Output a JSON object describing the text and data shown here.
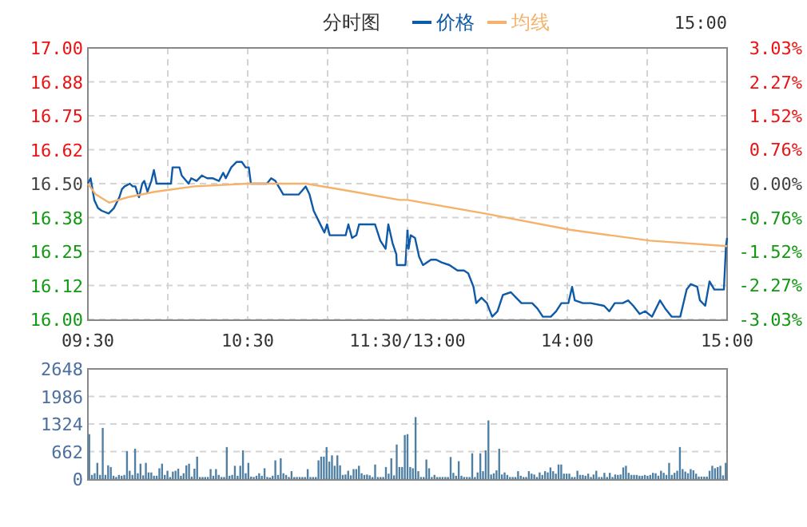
{
  "chart_data": [
    {
      "type": "line",
      "title": "分时图",
      "annotations": [
        "15:00"
      ],
      "legend": "top",
      "grid": true,
      "series": [
        {
          "name": "价格",
          "color": "#0f5aa6",
          "x": [
            9.5,
            9.517,
            9.54,
            9.563,
            9.587,
            9.63,
            9.663,
            9.697,
            9.713,
            9.73,
            9.763,
            9.78,
            9.797,
            9.813,
            9.82,
            9.84,
            9.853,
            9.873,
            9.897,
            9.913,
            9.93,
            9.963,
            10.02,
            10.03,
            10.073,
            10.087,
            10.13,
            10.147,
            10.18,
            10.213,
            10.247,
            10.28,
            10.32,
            10.347,
            10.363,
            10.397,
            10.43,
            10.463,
            10.487,
            10.507,
            10.52,
            10.62,
            10.647,
            10.673,
            10.723,
            10.82,
            10.863,
            10.887,
            10.913,
            10.963,
            10.98,
            10.997,
            11.013,
            11.03,
            11.08,
            11.113,
            11.13,
            11.153,
            11.18,
            11.197,
            11.297,
            11.33,
            11.363,
            11.38,
            11.407,
            11.43,
            11.433,
            11.487,
            11.5
          ],
          "values": [
            16.5,
            16.52,
            16.44,
            16.41,
            16.4,
            16.39,
            16.41,
            16.45,
            16.48,
            16.49,
            16.5,
            16.49,
            16.49,
            16.46,
            16.45,
            16.5,
            16.51,
            16.47,
            16.51,
            16.55,
            16.5,
            16.5,
            16.5,
            16.56,
            16.56,
            16.53,
            16.5,
            16.52,
            16.51,
            16.53,
            16.52,
            16.52,
            16.51,
            16.54,
            16.52,
            16.56,
            16.58,
            16.58,
            16.56,
            16.56,
            16.5,
            16.5,
            16.52,
            16.51,
            16.46,
            16.46,
            16.49,
            16.46,
            16.4,
            16.34,
            16.32,
            16.35,
            16.31,
            16.31,
            16.31,
            16.31,
            16.35,
            16.3,
            16.31,
            16.35,
            16.35,
            16.29,
            16.26,
            16.35,
            16.28,
            16.24,
            16.2,
            16.2,
            16.33
          ]
        },
        {
          "name": "均线",
          "color": "#f5b26b",
          "x": [
            9.5,
            9.55,
            9.633,
            9.75,
            9.917,
            10.167,
            10.5,
            10.867,
            11.167,
            11.45,
            11.5
          ],
          "values": [
            16.5,
            16.46,
            16.43,
            16.45,
            16.47,
            16.49,
            16.5,
            16.5,
            16.47,
            16.44,
            16.44
          ]
        }
      ],
      "xlim": [
        9.5,
        11.5
      ],
      "xticks": [
        {
          "value": 9.5,
          "label": "09:30"
        },
        {
          "value": 10,
          "label": null
        },
        {
          "value": 10.5,
          "label": "10:30"
        },
        {
          "value": 11,
          "label": null
        },
        {
          "value": 11.5,
          "label": "11:30/13:00"
        }
      ],
      "ylim": [
        16,
        17
      ],
      "yticks": [
        {
          "value": 16,
          "label": "16.00"
        },
        {
          "value": 16.125,
          "label": "16.12"
        },
        {
          "value": 16.25,
          "label": "16.25"
        },
        {
          "value": 16.375,
          "label": "16.38"
        },
        {
          "value": 16.5,
          "label": "16.50"
        },
        {
          "value": 16.625,
          "label": "16.62"
        },
        {
          "value": 16.75,
          "label": "16.75"
        },
        {
          "value": 16.875,
          "label": "16.88"
        },
        {
          "value": 17,
          "label": "17.00"
        }
      ]
    },
    {
      "type": "line",
      "grid": true,
      "tick_labels": "x",
      "series": [
        {
          "color": "#0f5aa6",
          "x": [
            13,
            13.007,
            13.02,
            13.047,
            13.073,
            13.097,
            13.147,
            13.18,
            13.213,
            13.263,
            13.313,
            13.353,
            13.38,
            13.413,
            13.43,
            13.463,
            13.497,
            13.53,
            13.563,
            13.597,
            13.647,
            13.68,
            13.713,
            13.763,
            13.78,
            13.813,
            13.847,
            13.897,
            13.93,
            13.963,
            14.007,
            14.03,
            14.047,
            14.097,
            14.147,
            14.23,
            14.263,
            14.297,
            14.347,
            14.38,
            14.413,
            14.453,
            14.487,
            14.53,
            14.58,
            14.613,
            14.653,
            14.707,
            14.747,
            14.773,
            14.813,
            14.83,
            14.863,
            14.89,
            14.92,
            14.98,
            14.993,
            15
          ],
          "values": [
            16.33,
            16.26,
            16.31,
            16.3,
            16.23,
            16.2,
            16.22,
            16.22,
            16.21,
            16.2,
            16.18,
            16.18,
            16.17,
            16.12,
            16.06,
            16.08,
            16.06,
            16.01,
            16.03,
            16.09,
            16.1,
            16.08,
            16.06,
            16.06,
            16.06,
            16.04,
            16.01,
            16.01,
            16.03,
            16.06,
            16.06,
            16.12,
            16.07,
            16.06,
            16.06,
            16.05,
            16.03,
            16.06,
            16.06,
            16.07,
            16.05,
            16.02,
            16.03,
            16.01,
            16.07,
            16.04,
            16.01,
            16.01,
            16.11,
            16.13,
            16.12,
            16.07,
            16.05,
            16.14,
            16.11,
            16.11,
            16.27,
            16.3
          ]
        },
        {
          "color": "#f5b26b",
          "x": [
            13,
            13.483,
            14.017,
            14.517,
            15
          ],
          "values": [
            16.44,
            16.39,
            16.33,
            16.29,
            16.27
          ]
        }
      ],
      "xlim": [
        13,
        15
      ],
      "xticks": [
        {
          "value": 13,
          "label": null
        },
        {
          "value": 13.5,
          "label": null
        },
        {
          "value": 14,
          "label": "14:00"
        },
        {
          "value": 14.5,
          "label": null
        },
        {
          "value": 15,
          "label": "15:00"
        }
      ],
      "ylim": [
        16,
        17
      ],
      "yticks": [
        16,
        16.125,
        16.25,
        16.375,
        16.5,
        16.625,
        16.75,
        16.875,
        17
      ],
      "y2lim": [
        -3.03,
        3.03
      ],
      "y2ticks": [
        {
          "value": -3.03,
          "label": "-3.03%"
        },
        {
          "value": -2.27,
          "label": "-2.27%"
        },
        {
          "value": -1.52,
          "label": "-1.52%"
        },
        {
          "value": -0.76,
          "label": "-0.76%"
        },
        {
          "value": 0,
          "label": "0.00%"
        },
        {
          "value": 0.76,
          "label": "0.76%"
        },
        {
          "value": 1.52,
          "label": "1.52%"
        },
        {
          "value": 2.27,
          "label": "2.27%"
        },
        {
          "value": 3.03,
          "label": "3.03%"
        }
      ]
    },
    {
      "type": "bar",
      "color": "#4f7fa3",
      "grid": "y",
      "tick_labels": "y",
      "categories": [
        null,
        null,
        null,
        null,
        null,
        null,
        null,
        null,
        null,
        null,
        null,
        null,
        null,
        null,
        null,
        null,
        null,
        null,
        null,
        null,
        null,
        null,
        null,
        null,
        null,
        null,
        null,
        null,
        null,
        null,
        null,
        null,
        null,
        null,
        null,
        null,
        null,
        null,
        null,
        null,
        null,
        null,
        null,
        null,
        null,
        null,
        null,
        null,
        null,
        null,
        null,
        null,
        null,
        null,
        null,
        null,
        null,
        null,
        null,
        null,
        null,
        null,
        null,
        null,
        null,
        null,
        null,
        null,
        null,
        null,
        null,
        null,
        null,
        null,
        null,
        null,
        null,
        null,
        null,
        null,
        null,
        null,
        null,
        null,
        null,
        null,
        null,
        null,
        null,
        null,
        null,
        null,
        null,
        null,
        null,
        null,
        null,
        null,
        null,
        null,
        null,
        null,
        null,
        null,
        null,
        null,
        null,
        null,
        null,
        null,
        null,
        null,
        null,
        null,
        null,
        null,
        null,
        null,
        null,
        null,
        null,
        null,
        null,
        null,
        null,
        null,
        null,
        null,
        null,
        null,
        null,
        null,
        null,
        null,
        null,
        null,
        null,
        null,
        null,
        null,
        null,
        null,
        null,
        null,
        null,
        null,
        null,
        null,
        null,
        null,
        null,
        null,
        null,
        null,
        null,
        null,
        null,
        null,
        null,
        null,
        null,
        null,
        null,
        null,
        null,
        null,
        null,
        null,
        null,
        null,
        null,
        null,
        null,
        null,
        null,
        null,
        null,
        null,
        null,
        null,
        null,
        null,
        null,
        null,
        null,
        null,
        null,
        null,
        null,
        null,
        null,
        null,
        null,
        null,
        null,
        null,
        null,
        null,
        null,
        null,
        null,
        null,
        null,
        null,
        null,
        null,
        null,
        null,
        null,
        null,
        null,
        null,
        null,
        null,
        null,
        null,
        null,
        null,
        null,
        null,
        null,
        null,
        null,
        null,
        null,
        null,
        null,
        null,
        null,
        null,
        null,
        null,
        null,
        null,
        null,
        null,
        null
      ],
      "values": [
        1080,
        100,
        140,
        390,
        100,
        1230,
        100,
        330,
        290,
        80,
        50,
        100,
        80,
        100,
        670,
        200,
        100,
        730,
        140,
        370,
        90,
        390,
        160,
        160,
        80,
        80,
        260,
        370,
        100,
        200,
        50,
        180,
        200,
        250,
        80,
        140,
        330,
        370,
        60,
        250,
        540,
        50,
        50,
        50,
        50,
        240,
        80,
        240,
        100,
        50,
        50,
        770,
        80,
        100,
        320,
        80,
        320,
        690,
        140,
        390,
        60,
        50,
        80,
        140,
        80,
        260,
        50,
        40,
        80,
        450,
        100,
        500,
        140,
        100,
        50,
        190,
        50,
        50,
        50,
        50,
        50,
        240,
        50,
        50,
        50,
        450,
        540,
        540,
        770,
        420,
        570,
        320,
        570,
        330,
        100,
        110,
        200,
        90,
        240,
        240,
        320,
        140,
        100,
        110,
        90,
        50,
        350,
        50,
        50,
        50,
        290,
        130,
        500,
        90,
        830,
        290,
        290,
        1060,
        1080,
        290,
        260,
        1490,
        190,
        50,
        50,
        470,
        260,
        50,
        100,
        50,
        50,
        50,
        50,
        50,
        530,
        150,
        80,
        430,
        80,
        50,
        50,
        50,
        620,
        50,
        160,
        620,
        190,
        690,
        1410,
        110,
        140,
        210,
        730,
        110,
        160,
        100,
        50,
        50,
        50,
        190,
        80,
        50,
        50,
        190,
        130,
        110,
        50,
        160,
        100,
        190,
        160,
        280,
        190,
        130,
        350,
        350,
        130,
        130,
        130,
        50,
        50,
        200,
        100,
        100,
        80,
        130,
        50,
        110,
        200,
        50,
        50,
        150,
        50,
        150,
        50,
        110,
        100,
        110,
        280,
        320,
        150,
        100,
        100,
        100,
        80,
        80,
        100,
        80,
        100,
        150,
        140,
        80,
        200,
        150,
        100,
        390,
        100,
        150,
        200,
        770,
        240,
        180,
        140,
        240,
        210,
        130,
        60,
        60,
        60,
        60,
        200,
        320,
        260,
        290,
        320,
        90,
        390
      ],
      "ylim": [
        0,
        2648
      ],
      "yticks": [
        0,
        662,
        1324,
        1986,
        2648
      ]
    }
  ]
}
